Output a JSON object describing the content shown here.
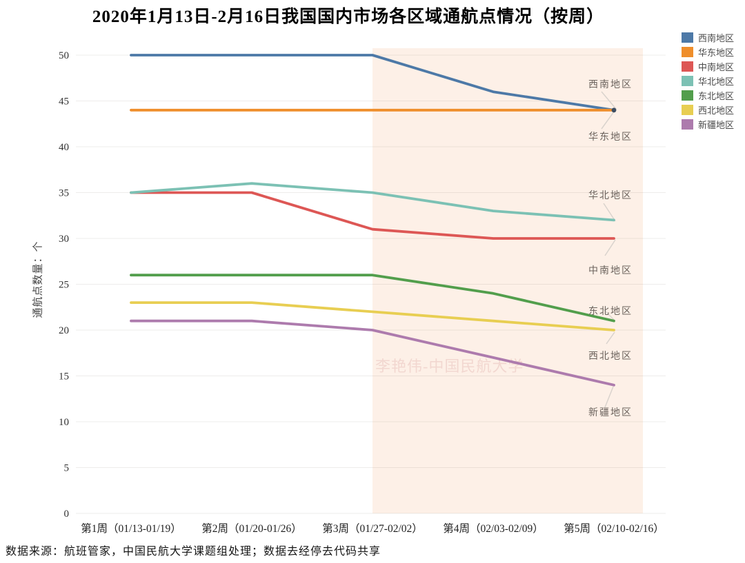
{
  "title": "2020年1月13日-2月16日我国国内市场各区域通航点情况（按周）",
  "watermark": "李艳伟-中国民航大学",
  "footer": "数据来源：航班管家，中国民航大学课题组处理；数据去经停去代码共享",
  "chart_data": {
    "type": "line",
    "title": "2020年1月13日-2月16日我国国内市场各区域通航点情况（按周）",
    "categories": [
      "第1周（01/13-01/19）",
      "第2周（01/20-01/26）",
      "第3周（01/27-02/02）",
      "第4周（02/03-02/09）",
      "第5周（02/10-02/16）"
    ],
    "ylabel": "通航点数量：个",
    "ylim": [
      0,
      50
    ],
    "ytick_step": 5,
    "grid": "horizontal",
    "legend_position": "top-right",
    "series": [
      {
        "name": "西南地区",
        "color": "#4d79a7",
        "values": [
          50,
          50,
          50,
          46,
          44
        ]
      },
      {
        "name": "华东地区",
        "color": "#ef8e2b",
        "values": [
          44,
          44,
          44,
          44,
          44
        ]
      },
      {
        "name": "中南地区",
        "color": "#dd5755",
        "values": [
          35,
          35,
          31,
          30,
          30
        ]
      },
      {
        "name": "华北地区",
        "color": "#7cc1b4",
        "values": [
          35,
          36,
          35,
          33,
          32
        ]
      },
      {
        "name": "东北地区",
        "color": "#529e4c",
        "values": [
          26,
          26,
          26,
          24,
          21
        ]
      },
      {
        "name": "西北地区",
        "color": "#e8ce52",
        "values": [
          23,
          23,
          22,
          21,
          20
        ]
      },
      {
        "name": "新疆地区",
        "color": "#ad7bad",
        "values": [
          21,
          21,
          20,
          17,
          14
        ]
      }
    ],
    "highlight_band": {
      "from_category_index": 2,
      "color": "#fdf0e7"
    },
    "endpoint_dot_color": "#3d4e62",
    "annotations": [
      {
        "text": "西南地区",
        "v": 46.9
      },
      {
        "text": "华东地区",
        "v": 41.2
      },
      {
        "text": "华北地区",
        "v": 34.8
      },
      {
        "text": "中南地区",
        "v": 26.6
      },
      {
        "text": "东北地区",
        "v": 22.2
      },
      {
        "text": "西北地区",
        "v": 17.3
      },
      {
        "text": "新疆地区",
        "v": 11.1
      }
    ]
  }
}
